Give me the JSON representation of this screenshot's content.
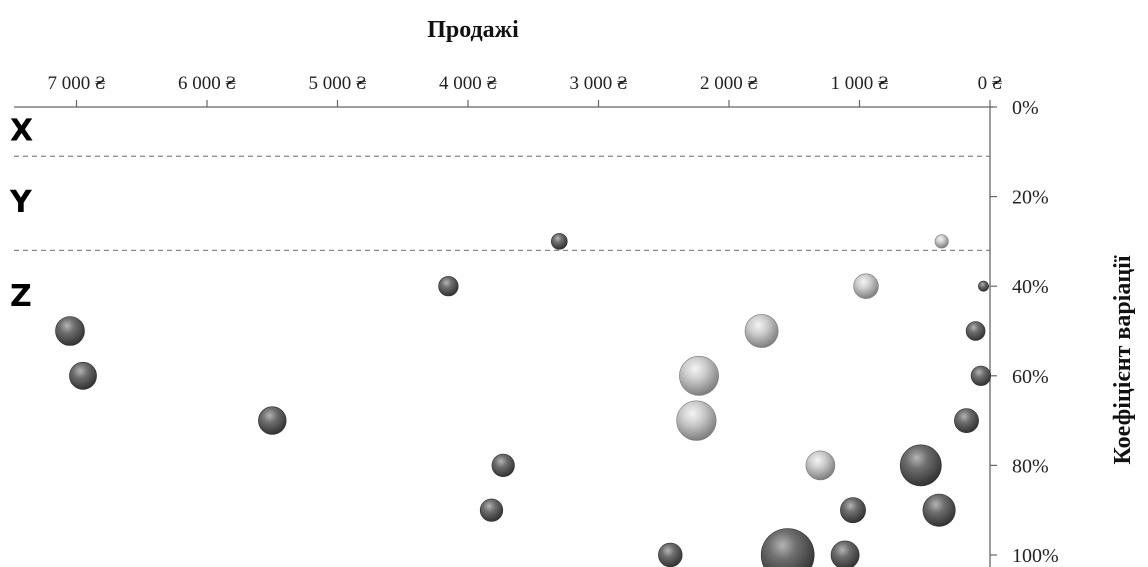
{
  "chart_data": {
    "type": "bubble",
    "title": "",
    "xlabel": "Продажі",
    "ylabel": "Коефіцієнт варіації",
    "x_axis": {
      "position": "top",
      "reversed": true,
      "min": 0,
      "max": 7500,
      "ticks": [
        {
          "value": 7000,
          "label": "7 000 ₴"
        },
        {
          "value": 6000,
          "label": "6 000 ₴"
        },
        {
          "value": 5000,
          "label": "5 000 ₴"
        },
        {
          "value": 4000,
          "label": "4 000 ₴"
        },
        {
          "value": 3000,
          "label": "3 000 ₴"
        },
        {
          "value": 2000,
          "label": "2 000 ₴"
        },
        {
          "value": 1000,
          "label": "1 000 ₴"
        },
        {
          "value": 0,
          "label": "0 ₴"
        }
      ]
    },
    "y_axis": {
      "position": "right",
      "reversed": true,
      "min": 0,
      "max": 1.05,
      "ticks": [
        {
          "value": 0,
          "label": "0%"
        },
        {
          "value": 0.2,
          "label": "20%"
        },
        {
          "value": 0.4,
          "label": "40%"
        },
        {
          "value": 0.6,
          "label": "60%"
        },
        {
          "value": 0.8,
          "label": "80%"
        },
        {
          "value": 1.0,
          "label": "100%"
        }
      ]
    },
    "zones": [
      {
        "label": "X",
        "label_center": 0.05,
        "upper_boundary": 0.11
      },
      {
        "label": "Y",
        "label_center": 0.21,
        "upper_boundary": 0.32
      },
      {
        "label": "Z",
        "label_center": 0.42,
        "upper_boundary": null
      }
    ],
    "points": [
      {
        "x": 3300,
        "y": 0.3,
        "size": 1.0,
        "shade": "dark"
      },
      {
        "x": 370,
        "y": 0.3,
        "size": 0.7,
        "shade": "light"
      },
      {
        "x": 4150,
        "y": 0.4,
        "size": 1.5,
        "shade": "dark"
      },
      {
        "x": 950,
        "y": 0.4,
        "size": 2.4,
        "shade": "light"
      },
      {
        "x": 50,
        "y": 0.4,
        "size": 0.4,
        "shade": "dark"
      },
      {
        "x": 7050,
        "y": 0.5,
        "size": 3.3,
        "shade": "dark"
      },
      {
        "x": 1750,
        "y": 0.5,
        "size": 4.3,
        "shade": "light"
      },
      {
        "x": 110,
        "y": 0.5,
        "size": 1.4,
        "shade": "dark"
      },
      {
        "x": 6950,
        "y": 0.6,
        "size": 2.9,
        "shade": "dark"
      },
      {
        "x": 2230,
        "y": 0.6,
        "size": 6.0,
        "shade": "light"
      },
      {
        "x": 70,
        "y": 0.6,
        "size": 1.5,
        "shade": "dark"
      },
      {
        "x": 5500,
        "y": 0.7,
        "size": 3.0,
        "shade": "dark"
      },
      {
        "x": 2250,
        "y": 0.7,
        "size": 6.1,
        "shade": "light"
      },
      {
        "x": 180,
        "y": 0.7,
        "size": 2.3,
        "shade": "dark"
      },
      {
        "x": 3730,
        "y": 0.8,
        "size": 2.0,
        "shade": "dark"
      },
      {
        "x": 1300,
        "y": 0.8,
        "size": 3.3,
        "shade": "light"
      },
      {
        "x": 530,
        "y": 0.8,
        "size": 6.6,
        "shade": "dark"
      },
      {
        "x": 3820,
        "y": 0.9,
        "size": 2.0,
        "shade": "dark"
      },
      {
        "x": 1050,
        "y": 0.9,
        "size": 2.5,
        "shade": "dark"
      },
      {
        "x": 390,
        "y": 0.9,
        "size": 4.1,
        "shade": "dark"
      },
      {
        "x": 2450,
        "y": 1.0,
        "size": 2.2,
        "shade": "dark"
      },
      {
        "x": 1550,
        "y": 1.0,
        "size": 11.0,
        "shade": "dark"
      },
      {
        "x": 1110,
        "y": 1.0,
        "size": 3.1,
        "shade": "dark"
      }
    ]
  }
}
